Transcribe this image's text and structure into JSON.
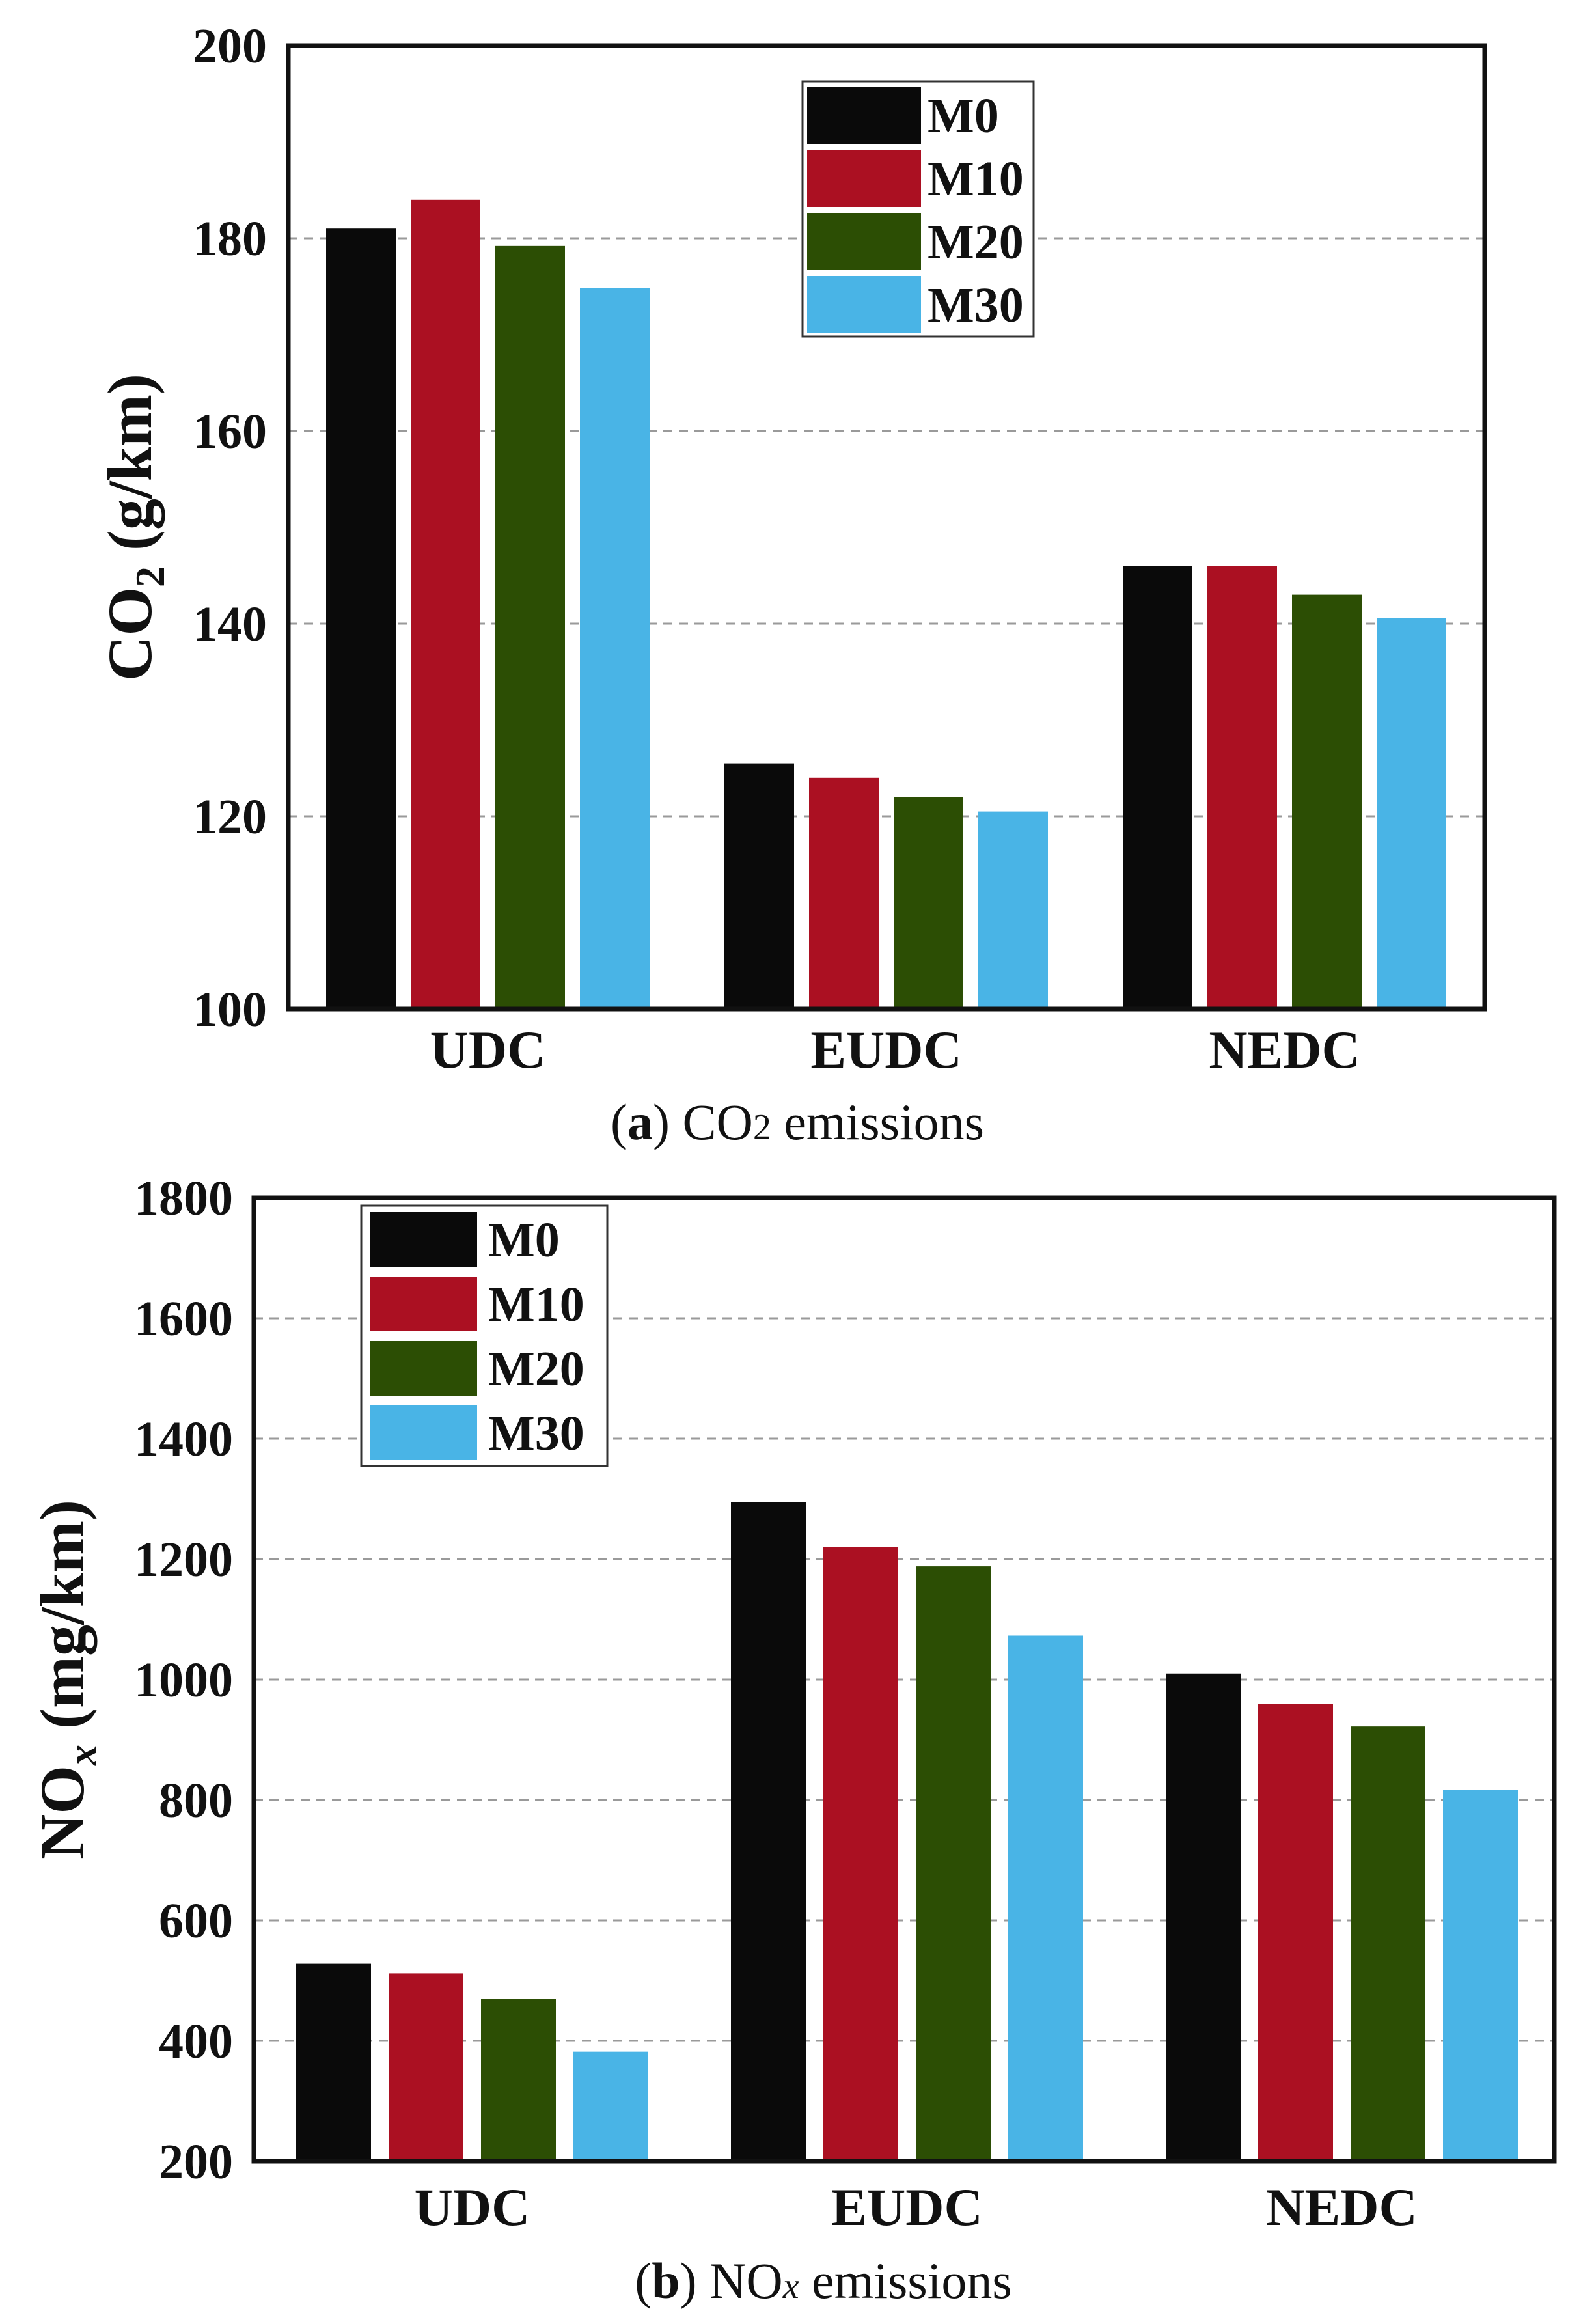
{
  "chart_data": [
    {
      "type": "bar",
      "panel": "a",
      "categories": [
        "UDC",
        "EUDC",
        "NEDC"
      ],
      "series": [
        {
          "name": "M0",
          "color": "#0a0a0a",
          "values": [
            181,
            125.5,
            146
          ]
        },
        {
          "name": "M10",
          "color": "#ab1022",
          "values": [
            184,
            124,
            146
          ]
        },
        {
          "name": "M20",
          "color": "#2c4e04",
          "values": [
            179.2,
            122,
            143
          ]
        },
        {
          "name": "M30",
          "color": "#49b4e6",
          "values": [
            174.8,
            120.5,
            140.6
          ]
        }
      ],
      "ylabel_main": "CO",
      "ylabel_sub": "2",
      "ylabel_unit": " (g/km)",
      "ylim": [
        100,
        200
      ],
      "yticks": [
        100,
        120,
        140,
        160,
        180,
        200
      ],
      "grid": true,
      "legend_position": "top-center",
      "caption": {
        "letter": "a",
        "text_main": "CO",
        "text_sub": "2",
        "text_rest": " emissions"
      }
    },
    {
      "type": "bar",
      "panel": "b",
      "categories": [
        "UDC",
        "EUDC",
        "NEDC"
      ],
      "series": [
        {
          "name": "M0",
          "color": "#0a0a0a",
          "values": [
            528,
            1295,
            1010
          ]
        },
        {
          "name": "M10",
          "color": "#ab1022",
          "values": [
            512,
            1220,
            960
          ]
        },
        {
          "name": "M20",
          "color": "#2c4e04",
          "values": [
            470,
            1188,
            922
          ]
        },
        {
          "name": "M30",
          "color": "#49b4e6",
          "values": [
            382,
            1073,
            817
          ]
        }
      ],
      "ylabel_main": "NO",
      "ylabel_sub": "x",
      "ylabel_unit": " (mg/km)",
      "ylim": [
        200,
        1800
      ],
      "yticks": [
        200,
        400,
        600,
        800,
        1000,
        1200,
        1400,
        1600,
        1800
      ],
      "grid": true,
      "legend_position": "top-left",
      "caption": {
        "letter": "b",
        "text_main": "NO",
        "text_sub": "x",
        "text_rest": " emissions"
      }
    }
  ]
}
